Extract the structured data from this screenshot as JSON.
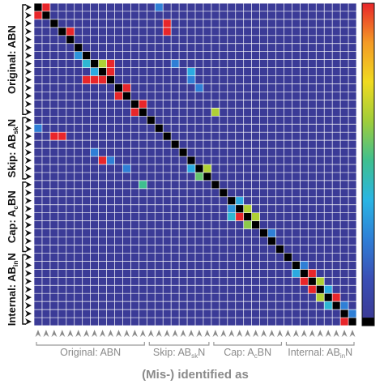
{
  "chart_data": {
    "type": "heatmap",
    "x_label": "(Mis-) identified as",
    "categories": [
      null,
      null,
      null,
      null,
      null,
      null,
      null,
      null,
      null,
      null,
      null,
      null,
      null,
      null,
      null,
      null,
      null,
      null,
      null,
      null,
      null,
      null,
      null,
      null,
      null,
      null,
      null,
      null,
      null,
      null,
      null,
      null,
      null,
      null,
      null,
      null,
      null,
      null,
      null,
      null
    ],
    "groups": [
      {
        "label_parts": [
          "Original: AB",
          "N"
        ]
      },
      {
        "label_parts": [
          "Skip: AB",
          "sk",
          "N"
        ]
      },
      {
        "label_parts": [
          "Cap: A",
          "c",
          "BN"
        ]
      },
      {
        "label_parts": [
          "Internal: AB",
          "in",
          "N"
        ]
      }
    ],
    "diagonal_color": "#000000",
    "colormap": [
      "#3b3b97",
      "#3a4fb5",
      "#2f7fd6",
      "#2ab5e3",
      "#3fbf8f",
      "#9fcd3a",
      "#f0da20",
      "#f39a26",
      "#e8262a"
    ],
    "colorbar": {
      "ylim": [
        0,
        1
      ]
    },
    "cells": [
      {
        "row": 0,
        "col": 1,
        "value": 1
      },
      {
        "row": 1,
        "col": 0,
        "value": 1
      },
      {
        "row": 0,
        "col": 15,
        "value": 0.25
      },
      {
        "row": 2,
        "col": 16,
        "value": 1
      },
      {
        "row": 3,
        "col": 16,
        "value": 1
      },
      {
        "row": 3,
        "col": 4,
        "value": 1
      },
      {
        "row": 6,
        "col": 5,
        "value": 0.3
      },
      {
        "row": 7,
        "col": 6,
        "value": 0.4
      },
      {
        "row": 7,
        "col": 8,
        "value": 0.65
      },
      {
        "row": 7,
        "col": 9,
        "value": 1
      },
      {
        "row": 8,
        "col": 7,
        "value": 0.35
      },
      {
        "row": 8,
        "col": 9,
        "value": 1
      },
      {
        "row": 9,
        "col": 6,
        "value": 1
      },
      {
        "row": 9,
        "col": 7,
        "value": 1
      },
      {
        "row": 9,
        "col": 8,
        "value": 1
      },
      {
        "row": 7,
        "col": 17,
        "value": 0.25
      },
      {
        "row": 8,
        "col": 19,
        "value": 0.35
      },
      {
        "row": 9,
        "col": 19,
        "value": 0.25
      },
      {
        "row": 10,
        "col": 20,
        "value": 0.25
      },
      {
        "row": 10,
        "col": 11,
        "value": 1
      },
      {
        "row": 11,
        "col": 10,
        "value": 1
      },
      {
        "row": 12,
        "col": 13,
        "value": 1
      },
      {
        "row": 13,
        "col": 12,
        "value": 1
      },
      {
        "row": 13,
        "col": 22,
        "value": 0.65
      },
      {
        "row": 15,
        "col": 0,
        "value": 0.25
      },
      {
        "row": 16,
        "col": 2,
        "value": 1
      },
      {
        "row": 16,
        "col": 3,
        "value": 1
      },
      {
        "row": 18,
        "col": 7,
        "value": 0.25
      },
      {
        "row": 19,
        "col": 8,
        "value": 1
      },
      {
        "row": 19,
        "col": 9,
        "value": 0.25
      },
      {
        "row": 20,
        "col": 11,
        "value": 0.25
      },
      {
        "row": 20,
        "col": 21,
        "value": 0.65
      },
      {
        "row": 21,
        "col": 20,
        "value": 0.55
      },
      {
        "row": 20,
        "col": 19,
        "value": 0.35
      },
      {
        "row": 22,
        "col": 13,
        "value": 0.5
      },
      {
        "row": 24,
        "col": 25,
        "value": 0.35
      },
      {
        "row": 25,
        "col": 24,
        "value": 0.3
      },
      {
        "row": 25,
        "col": 26,
        "value": 0.65
      },
      {
        "row": 26,
        "col": 25,
        "value": 1
      },
      {
        "row": 26,
        "col": 27,
        "value": 0.65
      },
      {
        "row": 27,
        "col": 26,
        "value": 0.6
      },
      {
        "row": 26,
        "col": 24,
        "value": 0.4
      },
      {
        "row": 28,
        "col": 29,
        "value": 0.25
      },
      {
        "row": 32,
        "col": 33,
        "value": 0.25
      },
      {
        "row": 33,
        "col": 32,
        "value": 0.35
      },
      {
        "row": 33,
        "col": 34,
        "value": 1
      },
      {
        "row": 34,
        "col": 33,
        "value": 1
      },
      {
        "row": 34,
        "col": 35,
        "value": 0.65
      },
      {
        "row": 35,
        "col": 34,
        "value": 1
      },
      {
        "row": 35,
        "col": 36,
        "value": 0.35
      },
      {
        "row": 36,
        "col": 35,
        "value": 0.65
      },
      {
        "row": 36,
        "col": 37,
        "value": 1
      },
      {
        "row": 37,
        "col": 36,
        "value": 0.4
      },
      {
        "row": 38,
        "col": 39,
        "value": 0.25
      },
      {
        "row": 39,
        "col": 38,
        "value": 1
      },
      {
        "row": 37,
        "col": 38,
        "value": 0.25
      }
    ]
  }
}
